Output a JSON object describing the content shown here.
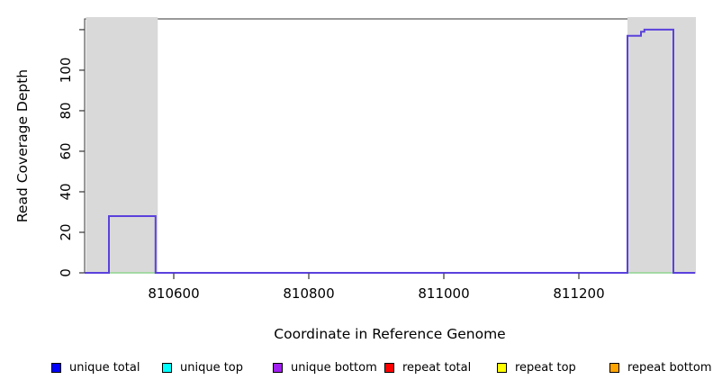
{
  "figure": {
    "xlabel": "Coordinate in Reference Genome",
    "ylabel": "Read Coverage Depth"
  },
  "chart_data": {
    "type": "line",
    "subtype": "step-coverage",
    "title": "",
    "xlabel": "Coordinate in Reference Genome",
    "ylabel": "Read Coverage Depth",
    "xlim": [
      810468,
      811372
    ],
    "ylim": [
      0,
      125.3
    ],
    "x_ticks": [
      810600,
      810800,
      811000,
      811200
    ],
    "y_ticks": [
      0,
      20,
      40,
      60,
      80,
      100
    ],
    "y_ticks_unlabeled": [
      120
    ],
    "grid": false,
    "plot_background": "#ffffff",
    "box_color": "#333333",
    "tick_color": "#333333",
    "regions": [
      {
        "name": "repeat-region-left",
        "x0": 810470,
        "x1": 810575,
        "color": "#d9d9d9"
      },
      {
        "name": "repeat-region-right",
        "x0": 811272,
        "x1": 811372,
        "color": "#d9d9d9"
      }
    ],
    "series": [
      {
        "name": "annotation-baseline-left",
        "color": "#8fd48f",
        "width": 1.6,
        "points": [
          [
            810470,
            0
          ],
          [
            810575,
            0
          ]
        ]
      },
      {
        "name": "annotation-baseline-right",
        "color": "#8fd48f",
        "width": 1.6,
        "points": [
          [
            811272,
            0
          ],
          [
            811372,
            0
          ]
        ]
      },
      {
        "name": "unique-coverage",
        "color": "#5b41dc",
        "width": 2,
        "points": [
          [
            810468,
            0
          ],
          [
            810504,
            0
          ],
          [
            810504,
            28
          ],
          [
            810573,
            28
          ],
          [
            810573,
            0
          ],
          [
            811272,
            0
          ],
          [
            811272,
            117
          ],
          [
            811292,
            117
          ],
          [
            811292,
            119
          ],
          [
            811297,
            119
          ],
          [
            811297,
            120
          ],
          [
            811340,
            120
          ],
          [
            811340,
            0
          ],
          [
            811372,
            0
          ]
        ]
      }
    ],
    "legend_position": "bottom"
  },
  "legend": {
    "items": [
      {
        "label": "unique total",
        "color": "#0000ff"
      },
      {
        "label": "unique top",
        "color": "#00ffff"
      },
      {
        "label": "unique bottom",
        "color": "#a020f0"
      },
      {
        "label": "repeat total",
        "color": "#ff0000"
      },
      {
        "label": "repeat top",
        "color": "#ffff00"
      },
      {
        "label": "repeat bottom",
        "color": "#ffa500"
      }
    ]
  }
}
